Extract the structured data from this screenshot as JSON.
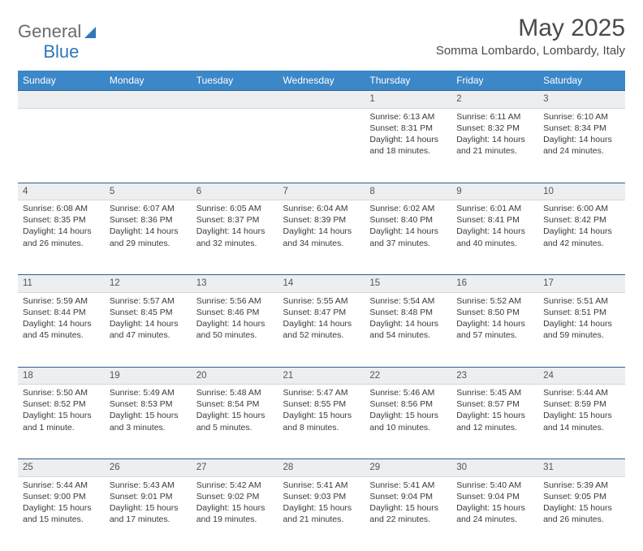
{
  "brand": {
    "part1": "General",
    "part2": "Blue"
  },
  "title": "May 2025",
  "location": "Somma Lombardo, Lombardy, Italy",
  "colors": {
    "header_bg": "#3b87c8",
    "header_text": "#ffffff",
    "daynum_bg": "#eceef0",
    "rule": "#2f5f8f",
    "brand_blue": "#2f77b8"
  },
  "day_headers": [
    "Sunday",
    "Monday",
    "Tuesday",
    "Wednesday",
    "Thursday",
    "Friday",
    "Saturday"
  ],
  "weeks": [
    [
      null,
      null,
      null,
      null,
      {
        "n": "1",
        "sr": "6:13 AM",
        "ss": "8:31 PM",
        "dl": "14 hours and 18 minutes."
      },
      {
        "n": "2",
        "sr": "6:11 AM",
        "ss": "8:32 PM",
        "dl": "14 hours and 21 minutes."
      },
      {
        "n": "3",
        "sr": "6:10 AM",
        "ss": "8:34 PM",
        "dl": "14 hours and 24 minutes."
      }
    ],
    [
      {
        "n": "4",
        "sr": "6:08 AM",
        "ss": "8:35 PM",
        "dl": "14 hours and 26 minutes."
      },
      {
        "n": "5",
        "sr": "6:07 AM",
        "ss": "8:36 PM",
        "dl": "14 hours and 29 minutes."
      },
      {
        "n": "6",
        "sr": "6:05 AM",
        "ss": "8:37 PM",
        "dl": "14 hours and 32 minutes."
      },
      {
        "n": "7",
        "sr": "6:04 AM",
        "ss": "8:39 PM",
        "dl": "14 hours and 34 minutes."
      },
      {
        "n": "8",
        "sr": "6:02 AM",
        "ss": "8:40 PM",
        "dl": "14 hours and 37 minutes."
      },
      {
        "n": "9",
        "sr": "6:01 AM",
        "ss": "8:41 PM",
        "dl": "14 hours and 40 minutes."
      },
      {
        "n": "10",
        "sr": "6:00 AM",
        "ss": "8:42 PM",
        "dl": "14 hours and 42 minutes."
      }
    ],
    [
      {
        "n": "11",
        "sr": "5:59 AM",
        "ss": "8:44 PM",
        "dl": "14 hours and 45 minutes."
      },
      {
        "n": "12",
        "sr": "5:57 AM",
        "ss": "8:45 PM",
        "dl": "14 hours and 47 minutes."
      },
      {
        "n": "13",
        "sr": "5:56 AM",
        "ss": "8:46 PM",
        "dl": "14 hours and 50 minutes."
      },
      {
        "n": "14",
        "sr": "5:55 AM",
        "ss": "8:47 PM",
        "dl": "14 hours and 52 minutes."
      },
      {
        "n": "15",
        "sr": "5:54 AM",
        "ss": "8:48 PM",
        "dl": "14 hours and 54 minutes."
      },
      {
        "n": "16",
        "sr": "5:52 AM",
        "ss": "8:50 PM",
        "dl": "14 hours and 57 minutes."
      },
      {
        "n": "17",
        "sr": "5:51 AM",
        "ss": "8:51 PM",
        "dl": "14 hours and 59 minutes."
      }
    ],
    [
      {
        "n": "18",
        "sr": "5:50 AM",
        "ss": "8:52 PM",
        "dl": "15 hours and 1 minute."
      },
      {
        "n": "19",
        "sr": "5:49 AM",
        "ss": "8:53 PM",
        "dl": "15 hours and 3 minutes."
      },
      {
        "n": "20",
        "sr": "5:48 AM",
        "ss": "8:54 PM",
        "dl": "15 hours and 5 minutes."
      },
      {
        "n": "21",
        "sr": "5:47 AM",
        "ss": "8:55 PM",
        "dl": "15 hours and 8 minutes."
      },
      {
        "n": "22",
        "sr": "5:46 AM",
        "ss": "8:56 PM",
        "dl": "15 hours and 10 minutes."
      },
      {
        "n": "23",
        "sr": "5:45 AM",
        "ss": "8:57 PM",
        "dl": "15 hours and 12 minutes."
      },
      {
        "n": "24",
        "sr": "5:44 AM",
        "ss": "8:59 PM",
        "dl": "15 hours and 14 minutes."
      }
    ],
    [
      {
        "n": "25",
        "sr": "5:44 AM",
        "ss": "9:00 PM",
        "dl": "15 hours and 15 minutes."
      },
      {
        "n": "26",
        "sr": "5:43 AM",
        "ss": "9:01 PM",
        "dl": "15 hours and 17 minutes."
      },
      {
        "n": "27",
        "sr": "5:42 AM",
        "ss": "9:02 PM",
        "dl": "15 hours and 19 minutes."
      },
      {
        "n": "28",
        "sr": "5:41 AM",
        "ss": "9:03 PM",
        "dl": "15 hours and 21 minutes."
      },
      {
        "n": "29",
        "sr": "5:41 AM",
        "ss": "9:04 PM",
        "dl": "15 hours and 22 minutes."
      },
      {
        "n": "30",
        "sr": "5:40 AM",
        "ss": "9:04 PM",
        "dl": "15 hours and 24 minutes."
      },
      {
        "n": "31",
        "sr": "5:39 AM",
        "ss": "9:05 PM",
        "dl": "15 hours and 26 minutes."
      }
    ]
  ],
  "labels": {
    "sunrise": "Sunrise: ",
    "sunset": "Sunset: ",
    "daylight": "Daylight: "
  }
}
